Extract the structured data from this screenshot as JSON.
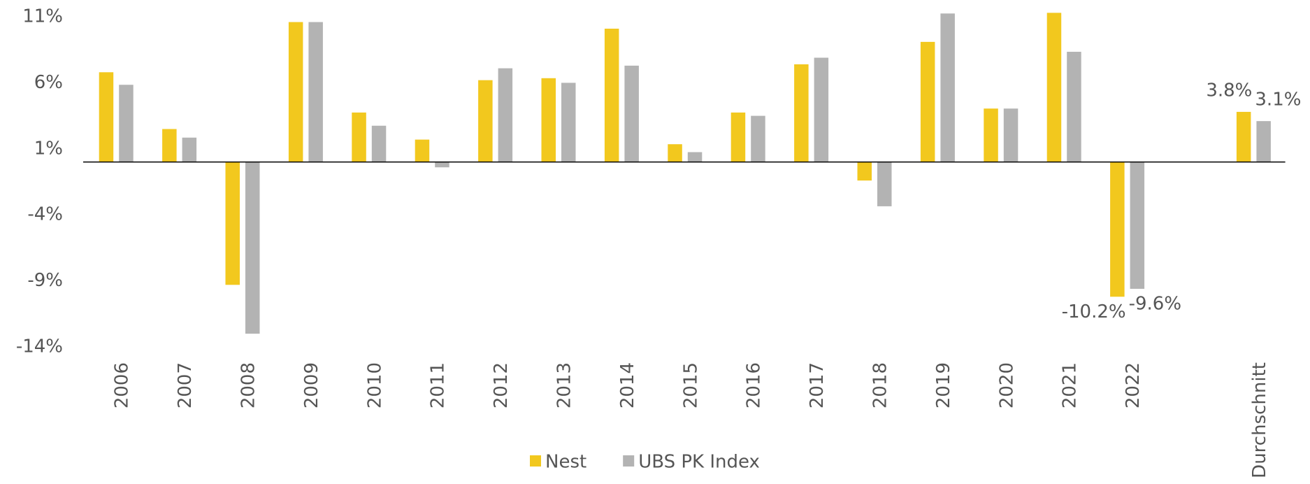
{
  "chart_data": {
    "type": "bar",
    "categories": [
      "2006",
      "2007",
      "2008",
      "2009",
      "2010",
      "2011",
      "2012",
      "2013",
      "2014",
      "2015",
      "2016",
      "2017",
      "2018",
      "2019",
      "2020",
      "2021",
      "2022",
      null,
      "Durchschnitt"
    ],
    "series": [
      {
        "name": "Nest",
        "color": "#f2c81e",
        "values": [
          6.8,
          2.5,
          -9.3,
          10.6,
          3.75,
          1.7,
          6.2,
          6.35,
          10.1,
          1.35,
          3.75,
          7.4,
          -1.4,
          9.1,
          4.05,
          11.3,
          -10.2,
          null,
          3.8
        ],
        "value_labels": [
          null,
          null,
          null,
          null,
          null,
          null,
          null,
          null,
          null,
          null,
          null,
          null,
          null,
          null,
          null,
          null,
          "-10.2%",
          null,
          "3.8%"
        ]
      },
      {
        "name": "UBS PK Index",
        "color": "#b3b3b3",
        "values": [
          5.85,
          1.85,
          -13.0,
          10.6,
          2.75,
          -0.4,
          7.1,
          6.0,
          7.3,
          0.75,
          3.5,
          7.9,
          -3.35,
          11.25,
          4.05,
          8.35,
          -9.6,
          null,
          3.1
        ],
        "value_labels": [
          null,
          null,
          null,
          null,
          null,
          null,
          null,
          null,
          null,
          null,
          null,
          null,
          null,
          null,
          null,
          null,
          "-9.6%",
          null,
          "3.1%"
        ]
      }
    ],
    "ylim": [
      -14,
      11
    ],
    "yticks": [
      {
        "value": 11,
        "label": "11%"
      },
      {
        "value": 6,
        "label": "6%"
      },
      {
        "value": 1,
        "label": "1%"
      },
      {
        "value": -4,
        "label": "-4%"
      },
      {
        "value": -9,
        "label": "-9%"
      },
      {
        "value": -14,
        "label": "-14%"
      }
    ],
    "legend": "bottom"
  }
}
